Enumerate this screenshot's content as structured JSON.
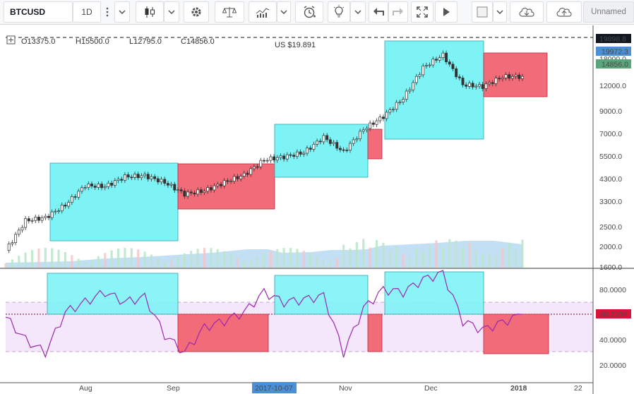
{
  "toolbar": {
    "symbol": "BTCUSD",
    "interval": "1D",
    "layout_name": "Unnamed",
    "icons": [
      "more-vertical-icon",
      "chevron-down-icon",
      "candlestick-icon",
      "settings-gear-icon",
      "compare-scale-icon",
      "indicators-icon",
      "alert-clock-icon",
      "idea-bulb-icon",
      "undo-icon",
      "redo-icon",
      "fullscreen-icon",
      "replay-play-icon",
      "square-icon",
      "cloud-download-icon",
      "cloud-upload-icon"
    ]
  },
  "legend": {
    "open": "O13375.0",
    "high": "H15500.0",
    "low": "L12795.0",
    "close": "C14856.0",
    "overlay": "US $19.891"
  },
  "price_axis": {
    "ticks": [
      "18000.0",
      "12000.0",
      "9000.0",
      "7000.0",
      "5500.0",
      "4300.0",
      "3300.0",
      "2500.0",
      "2000.0",
      "1600.0"
    ],
    "badges": {
      "high_line": "19898.8",
      "ref_price": "19972.3",
      "last_price": "14856.0"
    }
  },
  "indicator_axis": {
    "ticks": [
      "80.0000",
      "40.0000",
      "20.0000"
    ],
    "badge": "60.2790"
  },
  "time_axis": {
    "labels": [
      "Aug",
      "Sep",
      "Nov",
      "Dec",
      "2018",
      "22"
    ],
    "highlight": "2017-10-07"
  },
  "colors": {
    "up": "#26a69a",
    "down": "#ef5350",
    "cyan_box": "#7ef3f5",
    "red_box": "#f26b78",
    "indicator_line": "#9c27b0",
    "volume_area": "#a9d2f0",
    "axis_badge_dark": "#131722",
    "axis_badge_blue": "#4a90d9",
    "axis_badge_green": "#5aa57b",
    "axis_badge_red": "#d9143b"
  },
  "chart_data": [
    {
      "type": "candlestick",
      "title": "BTCUSD",
      "interval": "1D",
      "y_scale": "log",
      "yticks": [
        1600,
        2000,
        2500,
        3300,
        4300,
        5500,
        7000,
        9000,
        12000,
        18000
      ],
      "x_labels": [
        "Aug",
        "Sep",
        "2017-10-07",
        "Nov",
        "Dec",
        "2018",
        "22"
      ],
      "last_bar": {
        "open": 13375,
        "high": 15500,
        "low": 12795,
        "close": 14856
      },
      "series": [
        {
          "name": "BTCUSD",
          "dates": [
            "2017-07-16",
            "2017-07-23",
            "2017-07-30",
            "2017-08-06",
            "2017-08-13",
            "2017-08-20",
            "2017-08-27",
            "2017-09-03",
            "2017-09-10",
            "2017-09-17",
            "2017-09-24",
            "2017-10-01",
            "2017-10-08",
            "2017-10-15",
            "2017-10-22",
            "2017-10-29",
            "2017-11-05",
            "2017-11-12",
            "2017-11-19",
            "2017-11-26",
            "2017-12-03",
            "2017-12-10",
            "2017-12-17",
            "2017-12-24",
            "2017-12-31",
            "2018-01-07",
            "2018-01-14"
          ],
          "close": [
            1940,
            2750,
            2850,
            3300,
            4150,
            4100,
            4600,
            4650,
            4300,
            3750,
            3900,
            4300,
            4700,
            5600,
            5800,
            6100,
            7300,
            6150,
            8000,
            9300,
            11500,
            16500,
            19100,
            13500,
            13200,
            14800,
            14856
          ]
        }
      ]
    },
    {
      "type": "line",
      "title": "",
      "yticks": [
        20,
        40,
        60,
        80
      ],
      "reference_lines": [
        70,
        30
      ],
      "last_value": 60.279,
      "series": [
        {
          "name": "",
          "x": [
            "2017-07-16",
            "2017-07-23",
            "2017-07-30",
            "2017-08-06",
            "2017-08-13",
            "2017-08-20",
            "2017-08-27",
            "2017-09-03",
            "2017-09-10",
            "2017-09-17",
            "2017-09-24",
            "2017-10-01",
            "2017-10-08",
            "2017-10-15",
            "2017-10-22",
            "2017-10-29",
            "2017-11-05",
            "2017-11-12",
            "2017-11-19",
            "2017-11-26",
            "2017-12-03",
            "2017-12-10",
            "2017-12-17",
            "2017-12-24",
            "2017-12-31",
            "2018-01-07",
            "2018-01-14"
          ],
          "values": [
            58,
            40,
            30,
            62,
            70,
            78,
            70,
            74,
            44,
            30,
            50,
            55,
            62,
            78,
            70,
            72,
            75,
            30,
            65,
            80,
            78,
            88,
            93,
            55,
            48,
            54,
            60.28
          ]
        }
      ]
    }
  ]
}
